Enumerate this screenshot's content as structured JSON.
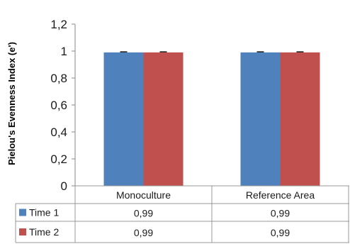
{
  "chart_data": {
    "type": "bar",
    "title": "",
    "xlabel": "",
    "ylabel": "Pielou's Evenness Index (e')",
    "categories": [
      "Monoculture",
      "Reference Area"
    ],
    "series": [
      {
        "name": "Time 1",
        "values": [
          0.99,
          0.99
        ],
        "color": "#4F81BD"
      },
      {
        "name": "Time 2",
        "values": [
          0.99,
          0.99
        ],
        "color": "#C0504D"
      }
    ],
    "value_labels": [
      [
        "0,99",
        "0,99"
      ],
      [
        "0,99",
        "0,99"
      ]
    ],
    "ylim": [
      0,
      1.2
    ],
    "yticks": [
      0,
      0.2,
      0.4,
      0.6,
      0.8,
      1,
      1.2
    ],
    "ytick_labels": [
      "0",
      "0,2",
      "0,4",
      "0,6",
      "0,8",
      "1",
      "1,2"
    ],
    "error_bars": true,
    "grid": false,
    "legend": "data-table"
  }
}
